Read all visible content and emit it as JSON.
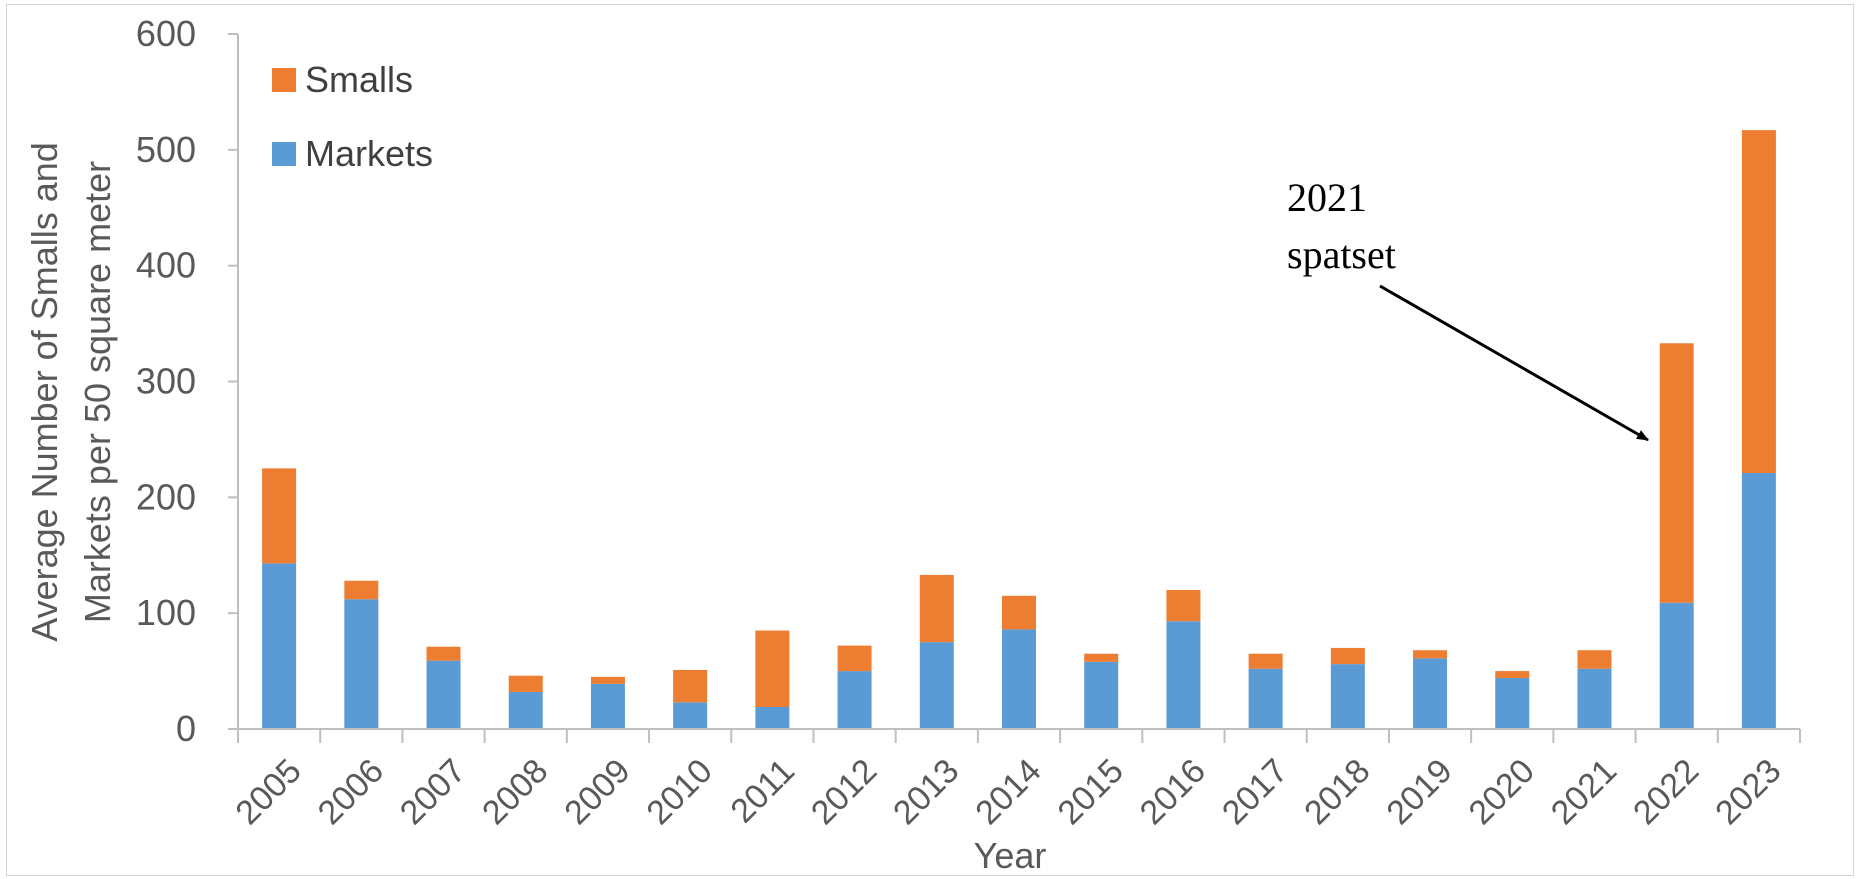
{
  "chart_data": {
    "type": "bar",
    "stacked": true,
    "title": "",
    "xlabel": "Year",
    "ylabel": [
      "Average Number of Smalls and",
      "Markets per 50 square meter"
    ],
    "ylim": [
      0,
      600
    ],
    "yticks": [
      0,
      100,
      200,
      300,
      400,
      500,
      600
    ],
    "categories": [
      "2005",
      "2006",
      "2007",
      "2008",
      "2009",
      "2010",
      "2011",
      "2012",
      "2013",
      "2014",
      "2015",
      "2016",
      "2017",
      "2018",
      "2019",
      "2020",
      "2021",
      "2022",
      "2023"
    ],
    "series": [
      {
        "name": "Markets",
        "color": "#5B9BD5",
        "values": [
          143,
          112,
          59,
          32,
          39,
          23,
          19,
          50,
          75,
          86,
          58,
          93,
          52,
          56,
          61,
          44,
          52,
          109,
          221
        ]
      },
      {
        "name": "Smalls",
        "color": "#ED7D31",
        "values": [
          82,
          16,
          12,
          14,
          6,
          28,
          66,
          22,
          58,
          29,
          7,
          27,
          13,
          14,
          7,
          6,
          16,
          224,
          296
        ]
      }
    ],
    "legend": {
      "position": "top-left",
      "order": [
        "Smalls",
        "Markets"
      ]
    },
    "grid": false,
    "annotation": {
      "lines": [
        "2021",
        "spatset"
      ],
      "points_to": "2022"
    }
  }
}
